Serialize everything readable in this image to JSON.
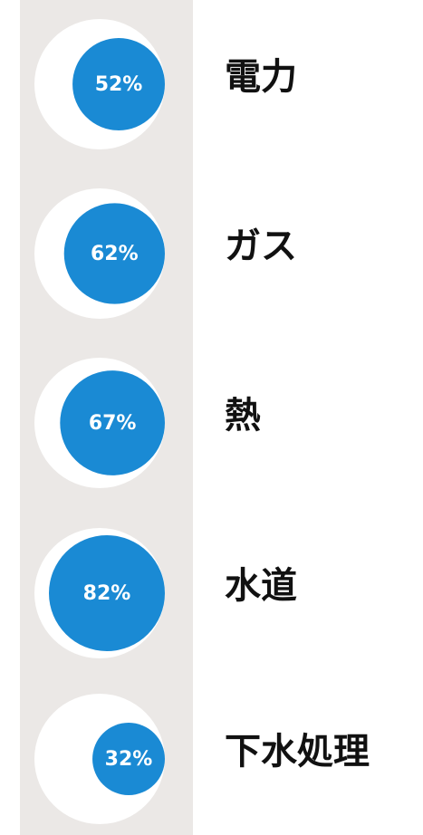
{
  "chart_data": {
    "type": "bubble",
    "categories": [
      "電力",
      "ガス",
      "熱",
      "水道",
      "下水処理"
    ],
    "values": [
      52,
      62,
      67,
      82,
      32
    ],
    "value_labels": [
      "52%",
      "62%",
      "67%",
      "82%",
      "32%"
    ],
    "color": "#1a8ad4"
  }
}
